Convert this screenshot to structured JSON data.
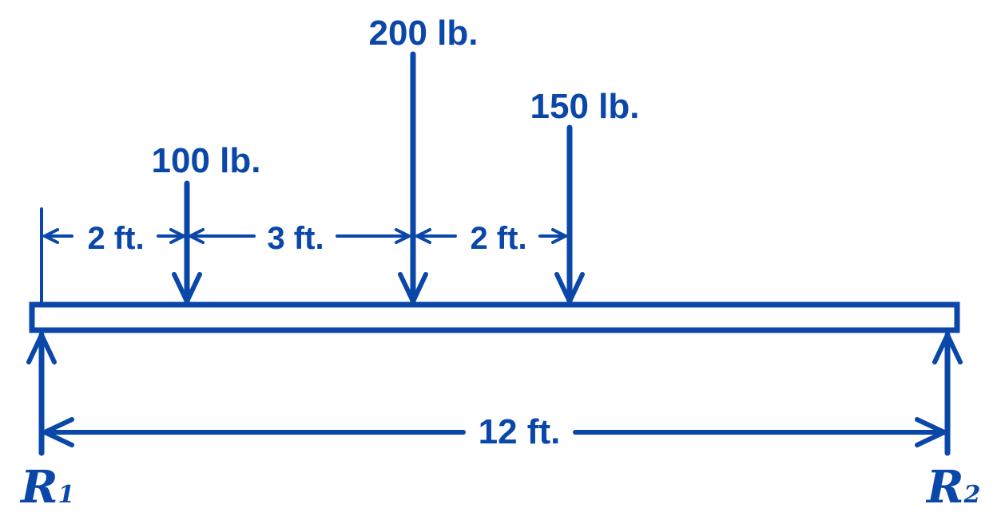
{
  "color": "#0a47a8",
  "loads": [
    {
      "label": "100 lb.",
      "position_ft": 2
    },
    {
      "label": "200 lb.",
      "position_ft": 5
    },
    {
      "label": "150 lb.",
      "position_ft": 7
    }
  ],
  "spacings": [
    "2 ft.",
    "3 ft.",
    "2 ft."
  ],
  "span": "12 ft.",
  "reactions": {
    "left": "R",
    "left_sub": "1",
    "right": "R",
    "right_sub": "2"
  }
}
